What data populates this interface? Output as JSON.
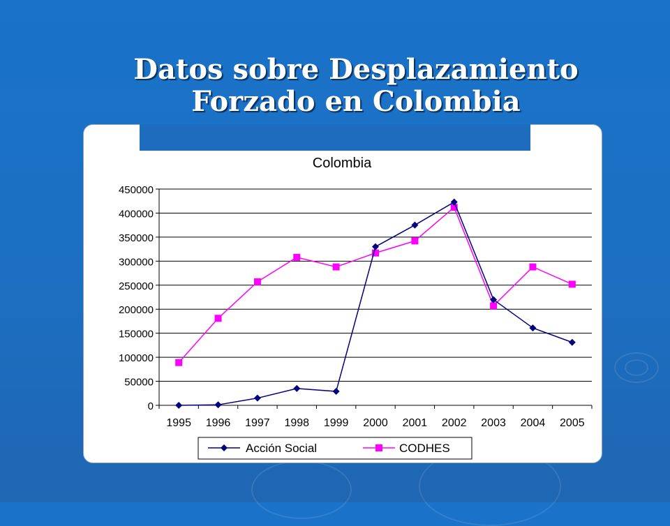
{
  "slide": {
    "title_line1": "Datos sobre Desplazamiento",
    "title_line2": "Forzado en Colombia"
  },
  "chart_data": {
    "type": "line",
    "title": "Colombia",
    "xlabel": "",
    "ylabel": "",
    "categories": [
      "1995",
      "1996",
      "1997",
      "1998",
      "1999",
      "2000",
      "2001",
      "2002",
      "2003",
      "2004",
      "2005"
    ],
    "ylim": [
      0,
      450000
    ],
    "yticks": [
      0,
      50000,
      100000,
      150000,
      200000,
      250000,
      300000,
      350000,
      400000,
      450000
    ],
    "grid": true,
    "legend": "bottom",
    "series": [
      {
        "name": "Acción Social",
        "color": "#000080",
        "marker": "diamond",
        "values": [
          0,
          1000,
          15000,
          35000,
          29000,
          330000,
          375000,
          423000,
          220000,
          161000,
          131000
        ]
      },
      {
        "name": "CODHES",
        "color": "#ff00ff",
        "marker": "square",
        "values": [
          89000,
          181000,
          257000,
          308000,
          288000,
          317000,
          342000,
          412000,
          207000,
          288000,
          252000
        ]
      }
    ]
  }
}
